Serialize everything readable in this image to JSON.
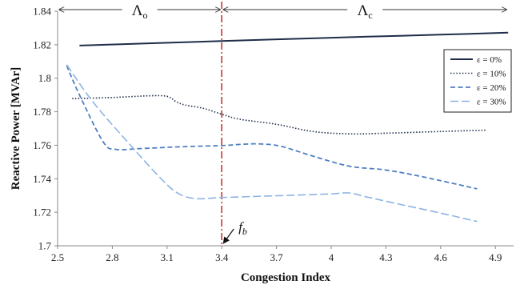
{
  "chart_data": {
    "type": "line",
    "title": "",
    "xlabel": "Congestion Index",
    "ylabel": "Reactive Power [MVAr]",
    "xlim": [
      2.5,
      5.0
    ],
    "ylim": [
      1.7,
      1.84
    ],
    "xticks": [
      "2.5",
      "2.8",
      "3.1",
      "3.4",
      "3.7",
      "4",
      "4.3",
      "4.6",
      "4.9"
    ],
    "xtick_values": [
      2.5,
      2.8,
      3.1,
      3.4,
      3.7,
      4.0,
      4.3,
      4.6,
      4.9
    ],
    "yticks": [
      "1.7",
      "1.72",
      "1.74",
      "1.76",
      "1.78",
      "1.8",
      "1.82",
      "1.84"
    ],
    "ytick_values": [
      1.7,
      1.72,
      1.74,
      1.76,
      1.78,
      1.8,
      1.82,
      1.84
    ],
    "grid": false,
    "legend_position": "right",
    "series": [
      {
        "name": "ε = 0%",
        "color": "#1f2d4a",
        "dash": "solid",
        "x": [
          2.62,
          3.0,
          3.4,
          3.8,
          4.2,
          4.6,
          4.97
        ],
        "y": [
          1.8195,
          1.8208,
          1.8222,
          1.8235,
          1.8248,
          1.826,
          1.8272
        ]
      },
      {
        "name": "ε = 10%",
        "color": "#1f2d4a",
        "dash": "dotted",
        "x": [
          2.58,
          2.8,
          3.0,
          3.1,
          3.15,
          3.2,
          3.3,
          3.4,
          3.5,
          3.7,
          3.9,
          4.1,
          4.3,
          4.6,
          4.85
        ],
        "y": [
          1.7878,
          1.7885,
          1.7895,
          1.7892,
          1.786,
          1.784,
          1.782,
          1.7785,
          1.7755,
          1.7725,
          1.7682,
          1.7668,
          1.7672,
          1.7682,
          1.769
        ]
      },
      {
        "name": "ε = 20%",
        "color": "#4f7fc2",
        "dash": "dashed",
        "x": [
          2.55,
          2.62,
          2.75,
          2.82,
          2.95,
          3.2,
          3.4,
          3.5,
          3.6,
          3.72,
          3.9,
          4.1,
          4.3,
          4.5,
          4.8
        ],
        "y": [
          1.8075,
          1.79,
          1.762,
          1.7575,
          1.758,
          1.7592,
          1.7598,
          1.7605,
          1.7608,
          1.7595,
          1.7535,
          1.7475,
          1.7452,
          1.7412,
          1.734
        ]
      },
      {
        "name": "ε = 30%",
        "color": "#8eb4e2",
        "dash": "longdash",
        "x": [
          2.55,
          2.7,
          2.9,
          3.05,
          3.15,
          3.25,
          3.4,
          3.6,
          3.8,
          4.0,
          4.1,
          4.2,
          4.4,
          4.6,
          4.8
        ],
        "y": [
          1.808,
          1.785,
          1.76,
          1.742,
          1.732,
          1.7282,
          1.7288,
          1.7295,
          1.7302,
          1.731,
          1.7315,
          1.729,
          1.7242,
          1.7195,
          1.7145
        ]
      }
    ],
    "annotations": {
      "boundary_x": 3.4,
      "boundary_color": "#c0392b",
      "region_left": {
        "symbol": "Λ",
        "sub": "o",
        "x_from": 2.5,
        "x_to": 3.4
      },
      "region_right": {
        "symbol": "Λ",
        "sub": "c",
        "x_from": 3.4,
        "x_to": 4.97
      },
      "point": {
        "symbol": "f",
        "sub": "b",
        "x": 3.4,
        "y": 1.7
      }
    }
  }
}
